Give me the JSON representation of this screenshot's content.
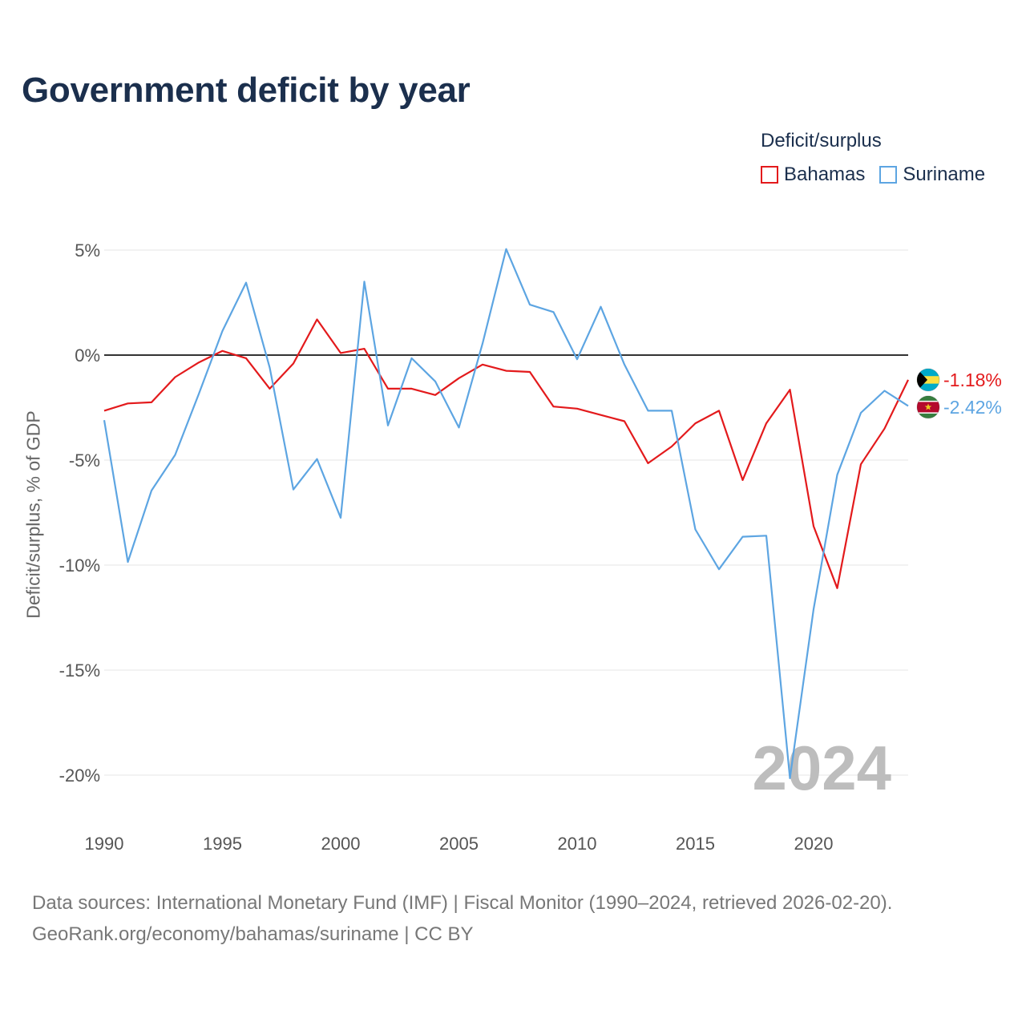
{
  "title": "Government deficit by year",
  "legend": {
    "title": "Deficit/surplus",
    "items": [
      {
        "label": "Bahamas",
        "color": "#e31a1c"
      },
      {
        "label": "Suriname",
        "color": "#5da5e2"
      }
    ]
  },
  "year_watermark": "2024",
  "source": {
    "line1": "Data sources: International Monetary Fund (IMF) | Fiscal Monitor (1990–2024, retrieved 2026-02-20).",
    "line2": "GeoRank.org/economy/bahamas/suriname | CC BY"
  },
  "chart_data": {
    "type": "line",
    "title": "Government deficit by year",
    "xlabel": "",
    "ylabel": "Deficit/surplus, % of GDP",
    "x": [
      1990,
      1991,
      1992,
      1993,
      1994,
      1995,
      1996,
      1997,
      1998,
      1999,
      2000,
      2001,
      2002,
      2003,
      2004,
      2005,
      2006,
      2007,
      2008,
      2009,
      2010,
      2011,
      2012,
      2013,
      2014,
      2015,
      2016,
      2017,
      2018,
      2019,
      2020,
      2021,
      2022,
      2023,
      2024
    ],
    "xlim": [
      1990,
      2024
    ],
    "ylim": [
      -20,
      5
    ],
    "x_ticks": [
      {
        "value": 1990,
        "label": "1990"
      },
      {
        "value": 1995,
        "label": "1995"
      },
      {
        "value": 2000,
        "label": "2000"
      },
      {
        "value": 2005,
        "label": "2005"
      },
      {
        "value": 2010,
        "label": "2010"
      },
      {
        "value": 2015,
        "label": "2015"
      },
      {
        "value": 2020,
        "label": "2020"
      }
    ],
    "y_ticks": [
      {
        "value": 5,
        "label": "5%"
      },
      {
        "value": 0,
        "label": "0%"
      },
      {
        "value": -5,
        "label": "-5%"
      },
      {
        "value": -10,
        "label": "-10%"
      },
      {
        "value": -15,
        "label": "-15%"
      },
      {
        "value": -20,
        "label": "-20%"
      }
    ],
    "grid": true,
    "zero_line": true,
    "legend_position": "top-right",
    "series": [
      {
        "name": "Bahamas",
        "color": "#e31a1c",
        "end_label": "-1.18%",
        "flag": "bahamas-flag",
        "values": [
          -2.65,
          -2.3,
          -2.25,
          -1.05,
          -0.35,
          0.2,
          -0.15,
          -1.6,
          -0.4,
          1.7,
          0.1,
          0.3,
          -1.6,
          -1.6,
          -1.9,
          -1.1,
          -0.45,
          -0.75,
          -0.8,
          -2.45,
          -2.55,
          -2.85,
          -3.15,
          -5.15,
          -4.35,
          -3.25,
          -2.65,
          -5.95,
          -3.25,
          -1.65,
          -8.15,
          -11.1,
          -5.2,
          -3.5,
          -1.18
        ]
      },
      {
        "name": "Suriname",
        "color": "#5da5e2",
        "end_label": "-2.42%",
        "flag": "suriname-flag",
        "values": [
          -3.1,
          -9.85,
          -6.45,
          -4.75,
          -1.85,
          1.15,
          3.45,
          -0.6,
          -6.4,
          -4.95,
          -7.75,
          3.5,
          -3.35,
          -0.15,
          -1.25,
          -3.45,
          0.55,
          5.05,
          2.4,
          2.05,
          -0.2,
          2.3,
          -0.45,
          -2.65,
          -2.65,
          -8.3,
          -10.2,
          -8.65,
          -8.6,
          -20.15,
          -12.1,
          -5.7,
          -2.75,
          -1.7,
          -2.42
        ]
      }
    ]
  }
}
